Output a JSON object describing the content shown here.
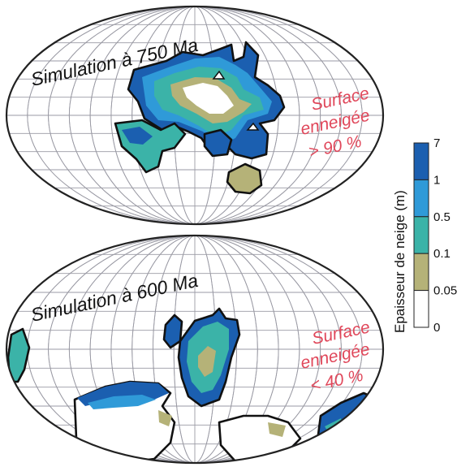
{
  "maps": [
    {
      "title": "Simulation à 750 Ma",
      "surface_label": [
        "Surface",
        "enneigée",
        "> 90 %"
      ]
    },
    {
      "title": "Simulation à 600 Ma",
      "surface_label": [
        "Surface",
        "enneigée",
        "< 40 %"
      ]
    }
  ],
  "legend": {
    "title": "Epaisseur de neige (m)",
    "ticks": [
      "7",
      "1",
      "0.5",
      "0.1",
      "0.05",
      "0"
    ],
    "colors": [
      "#1b5fb0",
      "#2f9ad8",
      "#3bb3a8",
      "#b5b278",
      "#ffffff"
    ]
  },
  "colors": {
    "label_red": "#e0475a",
    "deep_snow": "#1b5fb0",
    "mid_snow": "#2f9ad8",
    "teal_snow": "#3bb3a8",
    "olive_snow": "#b5b278"
  }
}
